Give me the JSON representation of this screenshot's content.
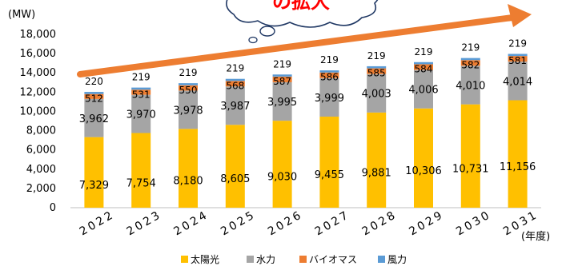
{
  "chart_data": {
    "type": "bar",
    "stacked": true,
    "unit_label": "(MW)",
    "x_unit_label": "(年度)",
    "callout_text": "の拡大",
    "categories": [
      "2022",
      "2023",
      "2024",
      "2025",
      "2026",
      "2027",
      "2028",
      "2029",
      "2030",
      "2031"
    ],
    "series": [
      {
        "name": "太陽光",
        "color": "#FFC000",
        "values": [
          7329,
          7754,
          8180,
          8605,
          9030,
          9455,
          9881,
          10306,
          10731,
          11156
        ]
      },
      {
        "name": "水力",
        "color": "#A5A5A5",
        "values": [
          3962,
          3970,
          3978,
          3987,
          3995,
          3999,
          4003,
          4006,
          4010,
          4014
        ]
      },
      {
        "name": "バイオマス",
        "color": "#ED7D31",
        "values": [
          512,
          531,
          550,
          568,
          587,
          586,
          585,
          584,
          582,
          581
        ]
      },
      {
        "name": "風力",
        "color": "#5B9BD5",
        "values": [
          220,
          219,
          219,
          219,
          219,
          219,
          219,
          219,
          219,
          219
        ]
      }
    ],
    "ylim": [
      0,
      18000
    ],
    "yticks": [
      0,
      2000,
      4000,
      6000,
      8000,
      10000,
      12000,
      14000,
      16000,
      18000
    ],
    "arrow_color": "#ED7D31",
    "legend_position": "bottom",
    "grid": false
  }
}
